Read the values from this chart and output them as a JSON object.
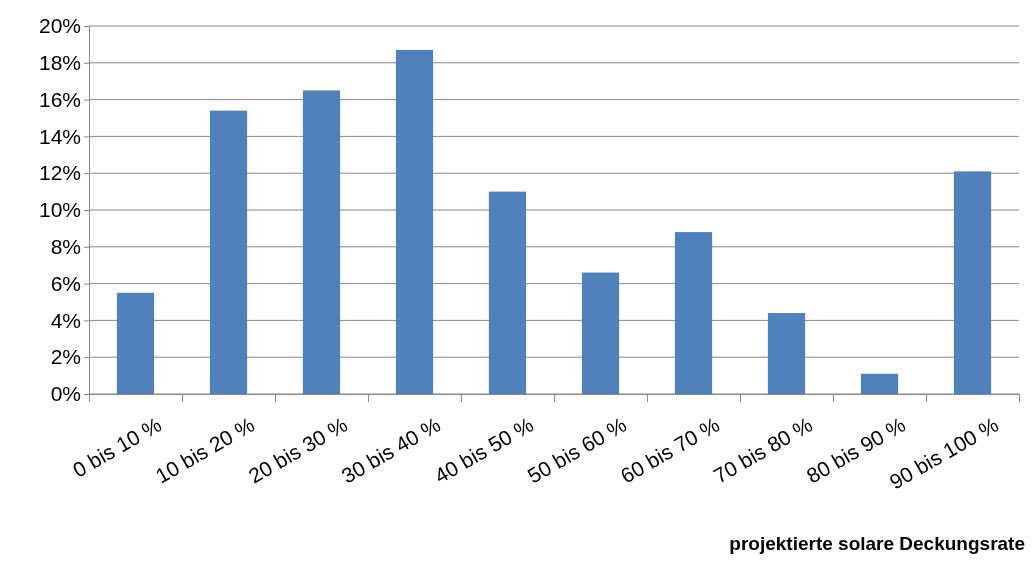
{
  "chart_data": {
    "type": "bar",
    "xlabel": "projektierte solare Deckungsrate",
    "categories": [
      "0 bis 10 %",
      "10 bis 20 %",
      "20 bis 30 %",
      "30 bis 40 %",
      "40 bis 50 %",
      "50 bis 60 %",
      "60 bis 70 %",
      "70 bis 80 %",
      "80 bis 90 %",
      "90 bis 100 %"
    ],
    "values": [
      5.5,
      15.4,
      16.5,
      18.7,
      11.0,
      6.6,
      8.8,
      4.4,
      1.1,
      12.1
    ],
    "color": "#4f81bd",
    "ylim": [
      0,
      20
    ],
    "yticks": [
      {
        "value": 0,
        "label": "0%"
      },
      {
        "value": 2,
        "label": "2%"
      },
      {
        "value": 4,
        "label": "4%"
      },
      {
        "value": 6,
        "label": "6%"
      },
      {
        "value": 8,
        "label": "8%"
      },
      {
        "value": 10,
        "label": "10%"
      },
      {
        "value": 12,
        "label": "12%"
      },
      {
        "value": 14,
        "label": "14%"
      },
      {
        "value": 16,
        "label": "16%"
      },
      {
        "value": 18,
        "label": "18%"
      },
      {
        "value": 20,
        "label": "20%"
      }
    ],
    "grid": "y"
  }
}
